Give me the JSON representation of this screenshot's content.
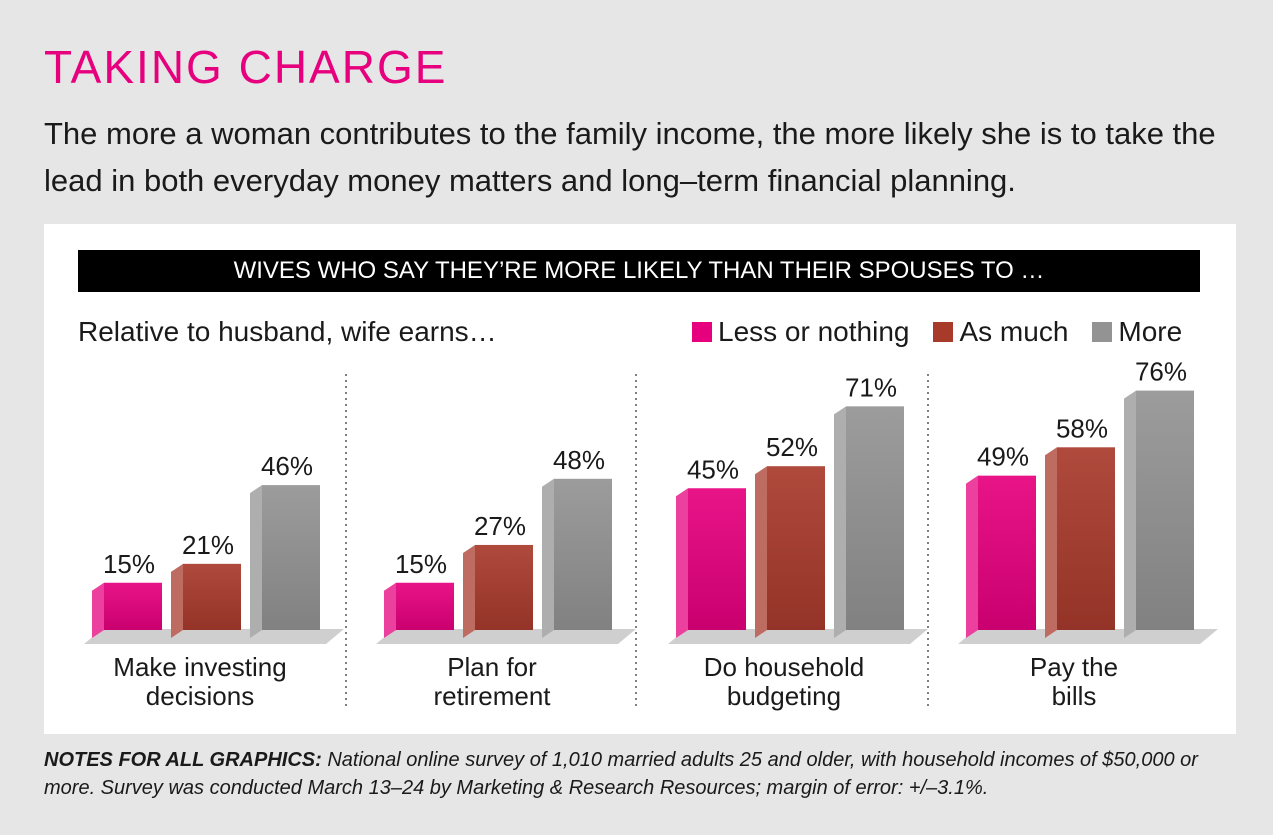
{
  "header": {
    "title": "TAKING CHARGE",
    "subtitle": "The more a woman contributes to the family income, the more likely she is to take the lead in both everyday money matters and long–term financial planning."
  },
  "chart_data": {
    "type": "bar",
    "title": "WIVES WHO SAY THEY’RE MORE LIKELY THAN THEIR SPOUSES TO …",
    "subtitle": "Relative to husband, wife earns…",
    "categories": [
      [
        "Make investing",
        "decisions"
      ],
      [
        "Plan for",
        "retirement"
      ],
      [
        "Do household",
        "budgeting"
      ],
      [
        "Pay the",
        "bills"
      ]
    ],
    "series": [
      {
        "name": "Less or nothing",
        "color": "#e6007e",
        "values": [
          15,
          15,
          45,
          49
        ],
        "labels": [
          "15%",
          "15%",
          "45%",
          "49%"
        ]
      },
      {
        "name": "As much",
        "color": "#a83a2c",
        "values": [
          21,
          27,
          52,
          58
        ],
        "labels": [
          "21%",
          "27%",
          "52%",
          "58%"
        ]
      },
      {
        "name": "More",
        "color": "#939393",
        "values": [
          46,
          48,
          71,
          76
        ],
        "labels": [
          "46%",
          "48%",
          "71%",
          "76%"
        ]
      }
    ],
    "ylim": [
      0,
      80
    ],
    "unit": "%"
  },
  "notes": {
    "heading": "NOTES FOR ALL GRAPHICS:",
    "text": " National online survey of 1,010 married adults 25 and older, with household incomes of $50,000 or more. Survey was conducted March 13–24 by Marketing & Research Resources; margin of error: +/–3.1%."
  }
}
